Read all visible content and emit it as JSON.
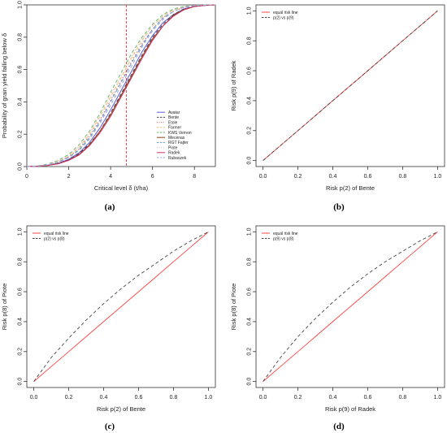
{
  "chart_data": [
    {
      "id": "a",
      "type": "line",
      "panel_label": "(a)",
      "title": "",
      "xlabel": "Critical level δ (t/ha)",
      "ylabel": "Probability of grain yield falling below δ",
      "xlim": [
        0,
        9
      ],
      "ylim": [
        0,
        1
      ],
      "xticks": [
        0,
        2,
        4,
        6,
        8
      ],
      "yticks": [
        0.0,
        0.2,
        0.4,
        0.6,
        0.8,
        1.0
      ],
      "grid": false,
      "legend_position": "bottom-right",
      "vline": {
        "x": 4.75,
        "color": "#ff3333"
      },
      "x": [
        0,
        0.5,
        1,
        1.5,
        2,
        2.5,
        3,
        3.5,
        4,
        4.5,
        5,
        5.5,
        6,
        6.5,
        7,
        7.5,
        8,
        8.5,
        9
      ],
      "series": [
        {
          "name": "Avatar",
          "color": "#5a5adc",
          "dash": "solid",
          "values": [
            0.0,
            0.002,
            0.008,
            0.02,
            0.045,
            0.085,
            0.15,
            0.24,
            0.35,
            0.47,
            0.59,
            0.71,
            0.81,
            0.89,
            0.94,
            0.975,
            0.99,
            0.997,
            1.0
          ]
        },
        {
          "name": "Bente",
          "color": "#444444",
          "dash": "dashed",
          "values": [
            0.0,
            0.002,
            0.008,
            0.02,
            0.04,
            0.08,
            0.14,
            0.22,
            0.33,
            0.45,
            0.57,
            0.69,
            0.8,
            0.88,
            0.94,
            0.975,
            0.99,
            0.997,
            1.0
          ]
        },
        {
          "name": "Etole",
          "color": "#e06666",
          "dash": "dotted",
          "values": [
            0.0,
            0.003,
            0.012,
            0.03,
            0.06,
            0.11,
            0.19,
            0.29,
            0.41,
            0.53,
            0.65,
            0.76,
            0.85,
            0.92,
            0.96,
            0.985,
            0.995,
            0.999,
            1.0
          ]
        },
        {
          "name": "Farmer",
          "color": "#e8c878",
          "dash": "dashed",
          "values": [
            0.0,
            0.003,
            0.012,
            0.03,
            0.065,
            0.12,
            0.2,
            0.31,
            0.43,
            0.55,
            0.67,
            0.78,
            0.87,
            0.93,
            0.97,
            0.988,
            0.996,
            0.999,
            1.0
          ]
        },
        {
          "name": "KWS Vernon",
          "color": "#66bb66",
          "dash": "dashed",
          "values": [
            0.0,
            0.004,
            0.015,
            0.038,
            0.075,
            0.135,
            0.22,
            0.33,
            0.46,
            0.58,
            0.7,
            0.8,
            0.88,
            0.94,
            0.975,
            0.99,
            0.997,
            0.999,
            1.0
          ]
        },
        {
          "name": "Mecenas",
          "color": "#8b4513",
          "dash": "solid",
          "values": [
            0.0,
            0.002,
            0.007,
            0.018,
            0.04,
            0.075,
            0.135,
            0.22,
            0.32,
            0.44,
            0.56,
            0.68,
            0.79,
            0.87,
            0.935,
            0.97,
            0.99,
            0.997,
            1.0
          ]
        },
        {
          "name": "RGT Fajter",
          "color": "#6699cc",
          "dash": "dashed",
          "values": [
            0.0,
            0.003,
            0.011,
            0.028,
            0.058,
            0.105,
            0.18,
            0.28,
            0.4,
            0.52,
            0.64,
            0.75,
            0.85,
            0.92,
            0.96,
            0.985,
            0.995,
            0.999,
            1.0
          ]
        },
        {
          "name": "Piote",
          "color": "#f0c0c0",
          "dash": "dotted",
          "values": [
            0.0,
            0.003,
            0.013,
            0.033,
            0.068,
            0.125,
            0.21,
            0.32,
            0.44,
            0.56,
            0.68,
            0.79,
            0.87,
            0.93,
            0.97,
            0.988,
            0.996,
            0.999,
            1.0
          ]
        },
        {
          "name": "Radek",
          "color": "#cc3366",
          "dash": "solid",
          "values": [
            0.0,
            0.002,
            0.007,
            0.017,
            0.038,
            0.072,
            0.13,
            0.21,
            0.31,
            0.43,
            0.55,
            0.67,
            0.78,
            0.87,
            0.93,
            0.97,
            0.99,
            0.997,
            1.0
          ]
        },
        {
          "name": "Rubaszek",
          "color": "#99aadd",
          "dash": "dashed",
          "values": [
            0.0,
            0.003,
            0.01,
            0.026,
            0.055,
            0.1,
            0.17,
            0.27,
            0.38,
            0.5,
            0.62,
            0.74,
            0.84,
            0.91,
            0.96,
            0.984,
            0.995,
            0.999,
            1.0
          ]
        }
      ]
    },
    {
      "id": "b",
      "type": "line",
      "panel_label": "(b)",
      "title": "",
      "xlabel": "Risk p(2) of Bente",
      "ylabel": "Risk  p(9) of Radek",
      "xlim": [
        -0.04,
        1.04
      ],
      "ylim": [
        -0.04,
        1.04
      ],
      "xticks": [
        0.0,
        0.2,
        0.4,
        0.6,
        0.8,
        1.0
      ],
      "yticks": [
        0.0,
        0.2,
        0.4,
        0.6,
        0.8,
        1.0
      ],
      "grid": false,
      "legend_position": "top-left",
      "x": [
        0,
        0.1,
        0.2,
        0.3,
        0.4,
        0.5,
        0.6,
        0.7,
        0.8,
        0.9,
        1.0
      ],
      "series": [
        {
          "name": "equal risk line",
          "color": "#ff4444",
          "dash": "solid",
          "values": [
            0,
            0.1,
            0.2,
            0.3,
            0.4,
            0.5,
            0.6,
            0.7,
            0.8,
            0.9,
            1.0
          ]
        },
        {
          "name": "p(2) vs p(9)",
          "color": "#444444",
          "dash": "dashed",
          "values": [
            0,
            0.1,
            0.2,
            0.3,
            0.4,
            0.5,
            0.6,
            0.7,
            0.8,
            0.9,
            1.0
          ]
        }
      ]
    },
    {
      "id": "c",
      "type": "line",
      "panel_label": "(c)",
      "title": "",
      "xlabel": "Risk p(2) of Bente",
      "ylabel": "Risk  p(8) of Piote",
      "xlim": [
        -0.04,
        1.04
      ],
      "ylim": [
        -0.04,
        1.04
      ],
      "xticks": [
        0.0,
        0.2,
        0.4,
        0.6,
        0.8,
        1.0
      ],
      "yticks": [
        0.0,
        0.2,
        0.4,
        0.6,
        0.8,
        1.0
      ],
      "grid": false,
      "legend_position": "top-left",
      "x": [
        0,
        0.1,
        0.2,
        0.3,
        0.4,
        0.5,
        0.6,
        0.7,
        0.8,
        0.9,
        1.0
      ],
      "series": [
        {
          "name": "equal risk line",
          "color": "#ff4444",
          "dash": "solid",
          "values": [
            0,
            0.1,
            0.2,
            0.3,
            0.4,
            0.5,
            0.6,
            0.7,
            0.8,
            0.9,
            1.0
          ]
        },
        {
          "name": "p(2) vs p(8)",
          "color": "#444444",
          "dash": "dashed",
          "values": [
            0,
            0.16,
            0.29,
            0.41,
            0.52,
            0.62,
            0.71,
            0.79,
            0.87,
            0.94,
            1.0
          ]
        }
      ]
    },
    {
      "id": "d",
      "type": "line",
      "panel_label": "(d)",
      "title": "",
      "xlabel": "Risk p(9) of Radek",
      "ylabel": "Risk  p(8) of Piote",
      "xlim": [
        -0.04,
        1.04
      ],
      "ylim": [
        -0.04,
        1.04
      ],
      "xticks": [
        0.0,
        0.2,
        0.4,
        0.6,
        0.8,
        1.0
      ],
      "yticks": [
        0.0,
        0.2,
        0.4,
        0.6,
        0.8,
        1.0
      ],
      "grid": false,
      "legend_position": "top-left",
      "x": [
        0,
        0.1,
        0.2,
        0.3,
        0.4,
        0.5,
        0.6,
        0.7,
        0.8,
        0.9,
        1.0
      ],
      "series": [
        {
          "name": "equal risk line",
          "color": "#ff4444",
          "dash": "solid",
          "values": [
            0,
            0.1,
            0.2,
            0.3,
            0.4,
            0.5,
            0.6,
            0.7,
            0.8,
            0.9,
            1.0
          ]
        },
        {
          "name": "p(9) vs p(8)",
          "color": "#444444",
          "dash": "dashed",
          "values": [
            0,
            0.16,
            0.3,
            0.42,
            0.53,
            0.63,
            0.72,
            0.8,
            0.87,
            0.94,
            1.0
          ]
        }
      ]
    }
  ]
}
